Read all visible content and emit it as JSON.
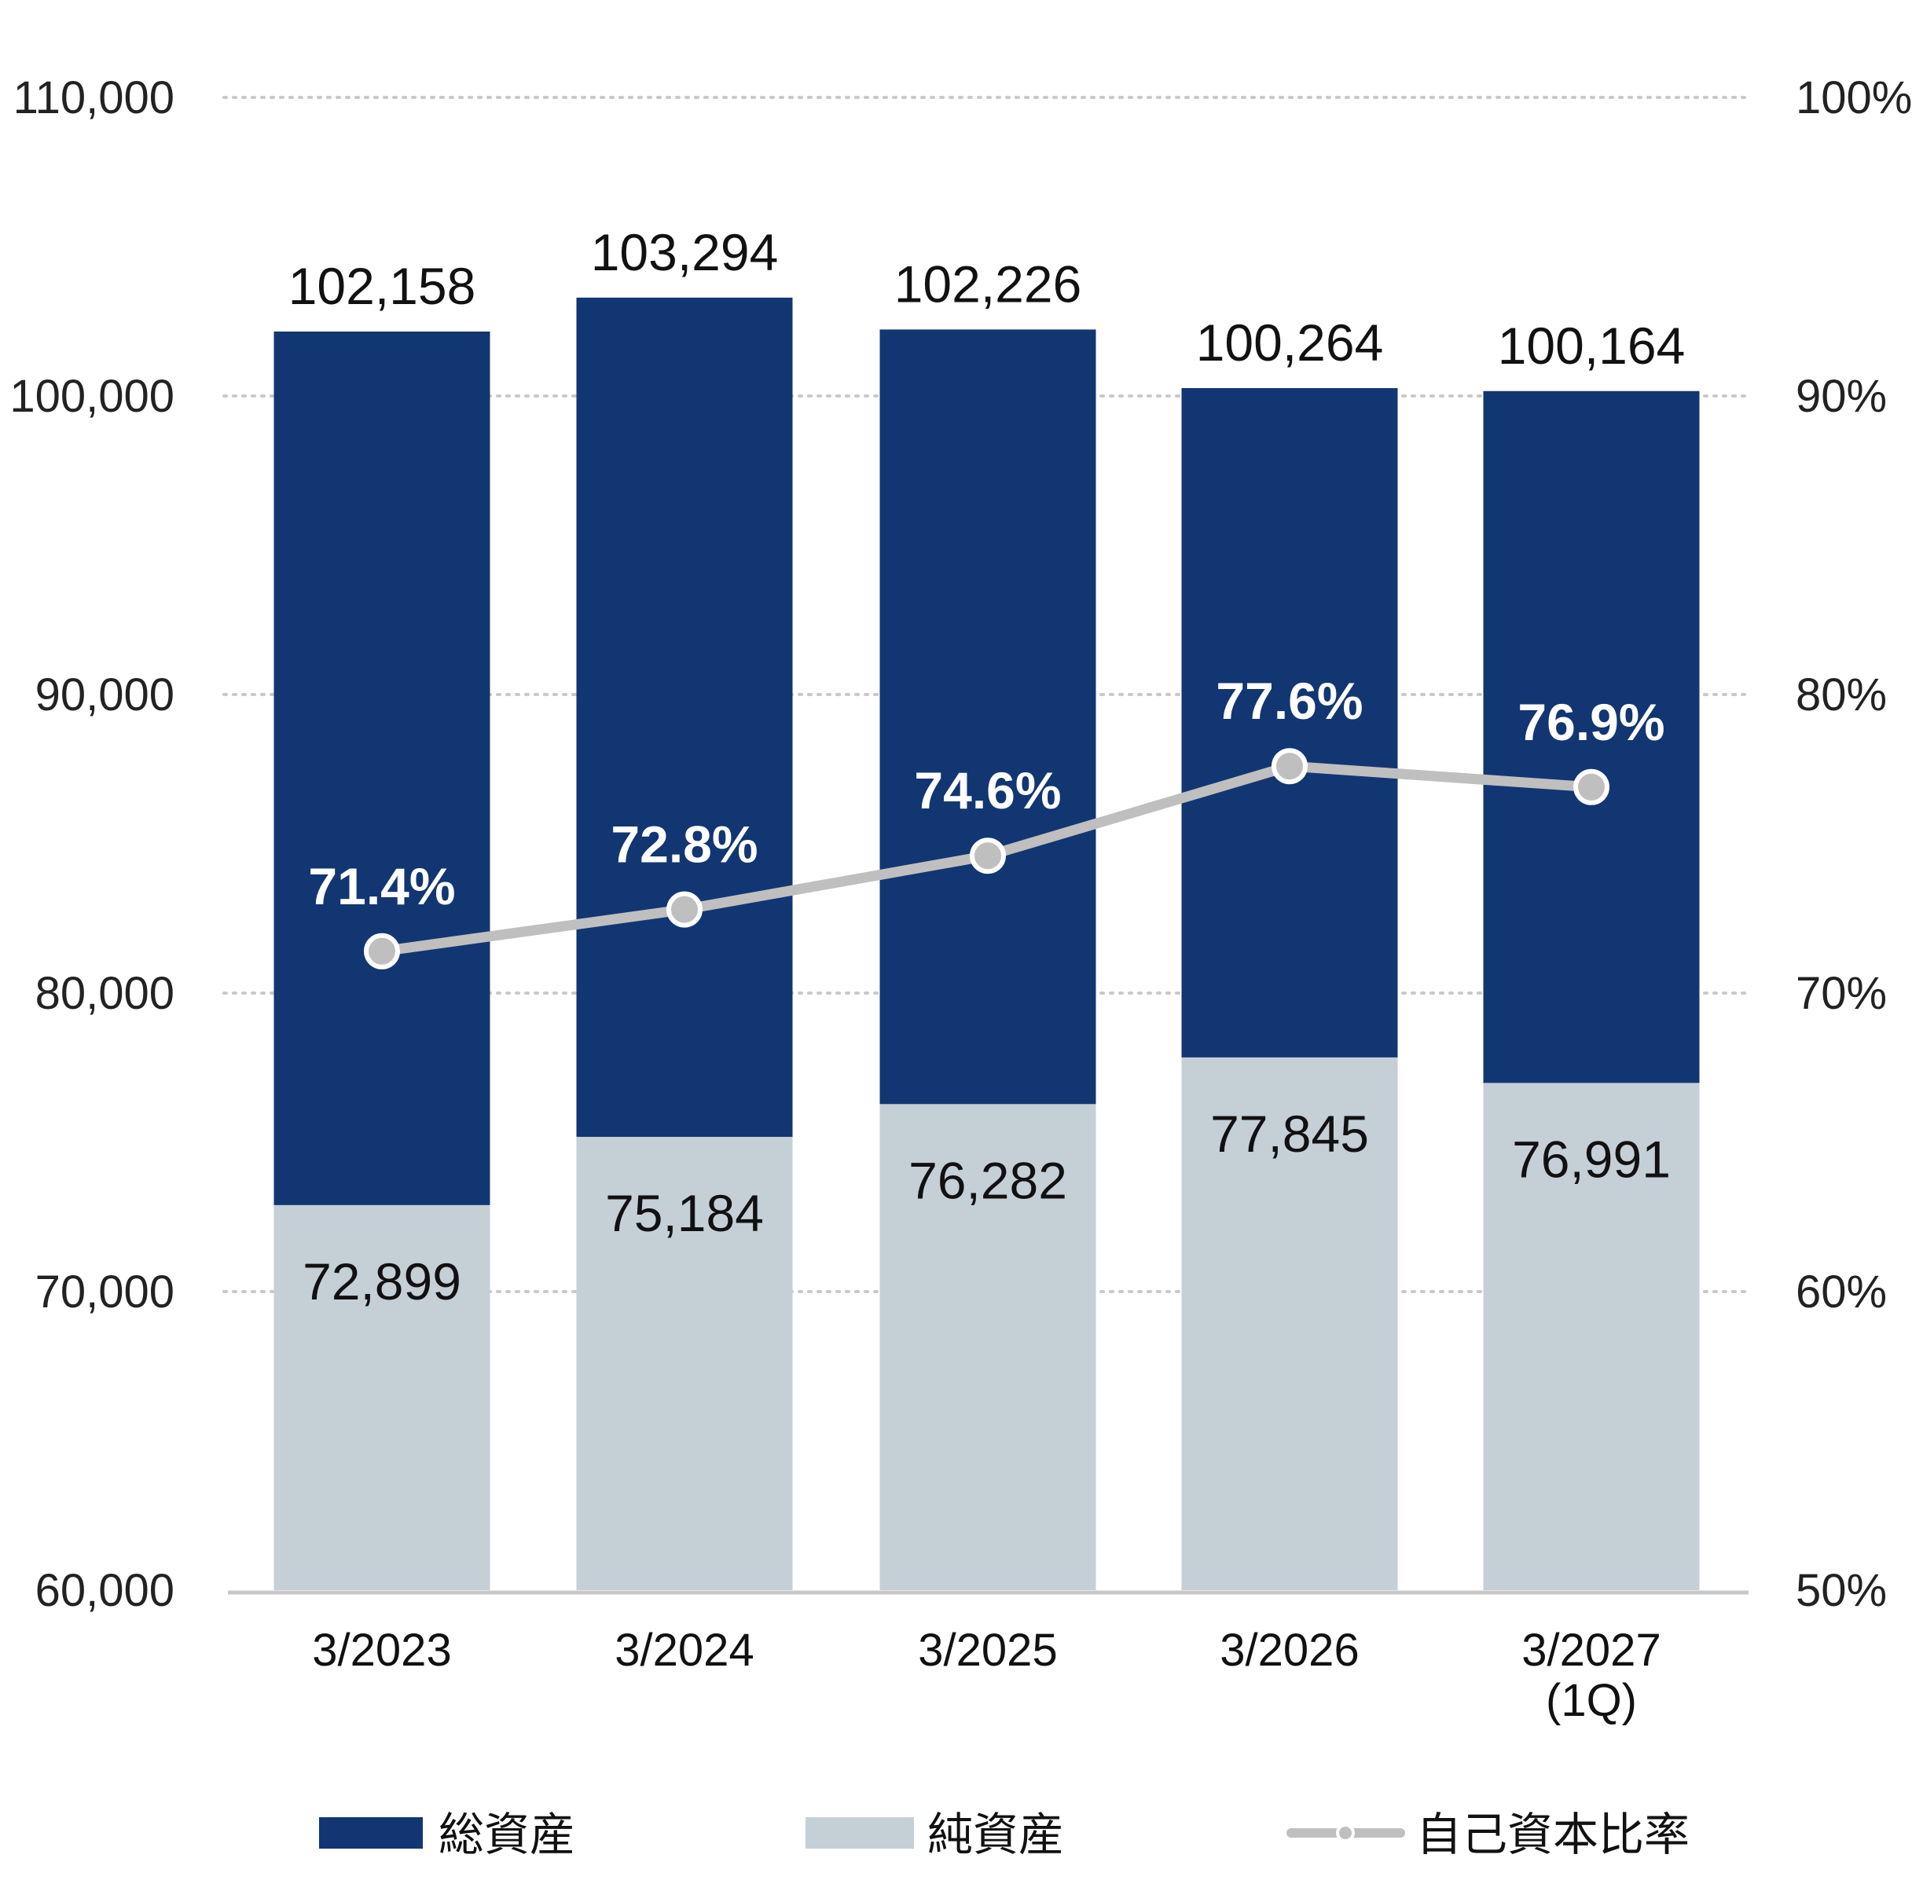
{
  "chart_data": {
    "type": "bar",
    "stacked_overlay": true,
    "categories": [
      [
        "3/2023"
      ],
      [
        "3/2024"
      ],
      [
        "3/2025"
      ],
      [
        "3/2026"
      ],
      [
        "3/2027",
        "(1Q)"
      ]
    ],
    "series": [
      {
        "name": "総資産",
        "type": "bar",
        "axis": "left",
        "values": [
          102158,
          103294,
          102226,
          100264,
          100164
        ],
        "labels": [
          "102,158",
          "103,294",
          "102,226",
          "100,264",
          "100,164"
        ],
        "color": "#123672"
      },
      {
        "name": "純資産",
        "type": "bar",
        "axis": "left",
        "values": [
          72899,
          75184,
          76282,
          77845,
          76991
        ],
        "labels": [
          "72,899",
          "75,184",
          "76,282",
          "77,845",
          "76,991"
        ],
        "color": "#c5cfd6"
      },
      {
        "name": "自己資本比率",
        "type": "line",
        "axis": "right",
        "values": [
          71.4,
          72.8,
          74.6,
          77.6,
          76.9
        ],
        "labels": [
          "71.4%",
          "72.8%",
          "74.6%",
          "77.6%",
          "76.9%"
        ],
        "color": "#bfbfbf"
      }
    ],
    "y_left": {
      "min": 60000,
      "max": 110000,
      "ticks": [
        "60,000",
        "70,000",
        "80,000",
        "90,000",
        "100,000",
        "110,000"
      ]
    },
    "y_right": {
      "min": 50,
      "max": 100,
      "ticks": [
        "50%",
        "60%",
        "70%",
        "80%",
        "90%",
        "100%"
      ]
    },
    "grid": "dotted horizontal",
    "legend": {
      "position": "bottom",
      "items": [
        "総資産",
        "純資産",
        "自己資本比率"
      ]
    }
  }
}
